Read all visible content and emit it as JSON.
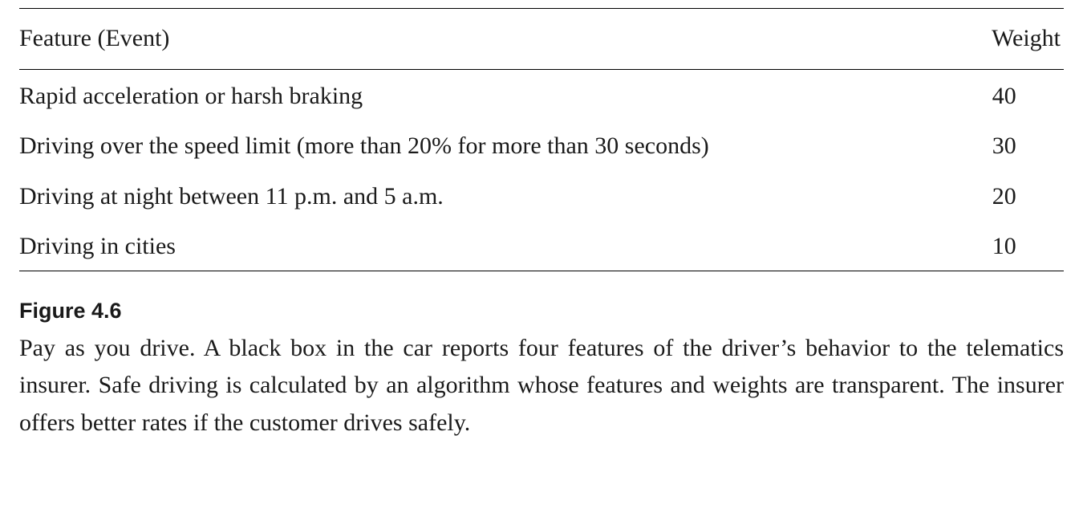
{
  "table": {
    "columns": [
      "Feature (Event)",
      "Weight"
    ],
    "rows": [
      {
        "feature": "Rapid acceleration or harsh braking",
        "weight": 40
      },
      {
        "feature": "Driving over the speed limit (more than 20% for more than 30 seconds)",
        "weight": 30
      },
      {
        "feature": "Driving at night between 11 p.m. and 5 a.m.",
        "weight": 20
      },
      {
        "feature": "Driving in cities",
        "weight": 10
      }
    ],
    "font_size_pt": 22,
    "rule_color": "#000000",
    "text_color": "#1a1a1a",
    "background_color": "#ffffff"
  },
  "caption": {
    "label": "Figure 4.6",
    "text": "Pay as you drive. A black box in the car reports four features of the driver’s behavior to the telematics insurer. Safe driving is calculated by an algorithm whose features and weights are transparent. The insurer offers better rates if the customer drives safely.",
    "label_font": "sans-serif",
    "label_weight": "bold",
    "body_font": "serif",
    "body_align": "justify"
  }
}
